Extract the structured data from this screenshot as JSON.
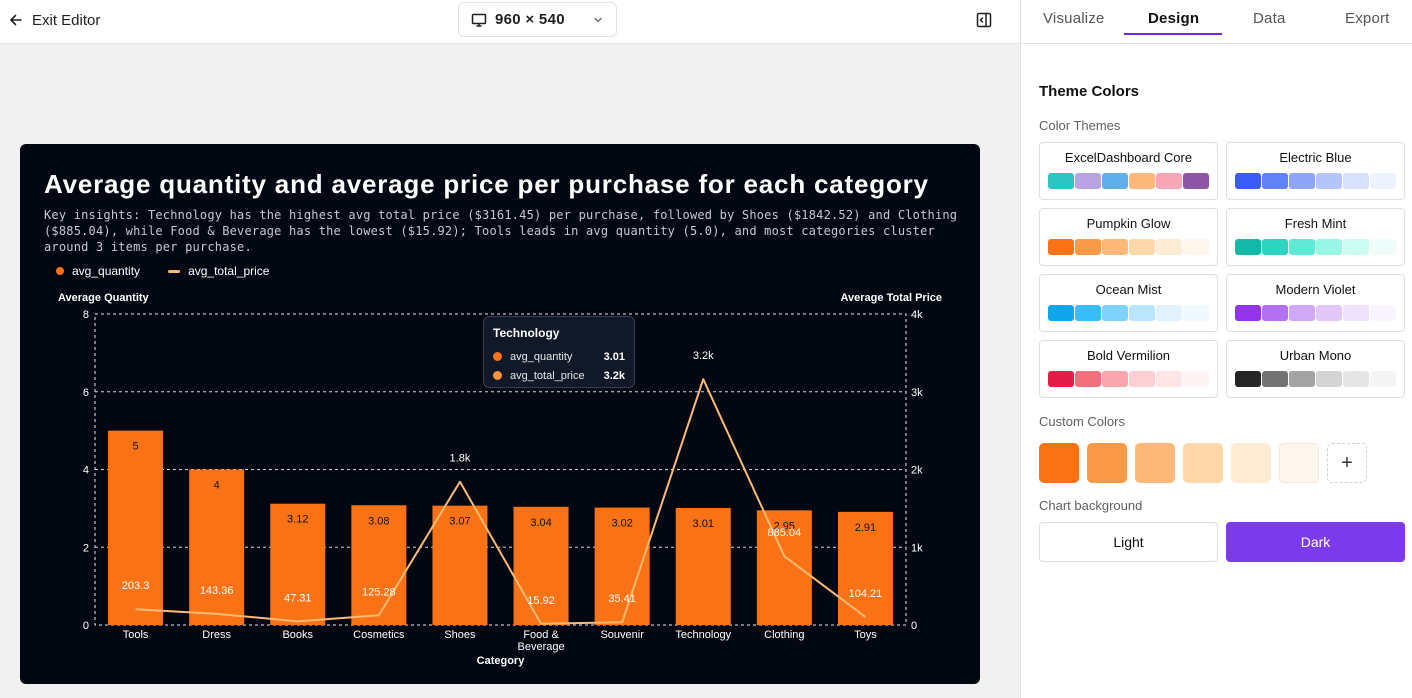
{
  "topbar": {
    "exit_label": "Exit Editor",
    "canvas_size": "960 × 540"
  },
  "tabs": [
    {
      "label": "Visualize",
      "active": false
    },
    {
      "label": "Design",
      "active": true
    },
    {
      "label": "Data",
      "active": false
    },
    {
      "label": "Export",
      "active": false
    }
  ],
  "design": {
    "section_title": "Theme Colors",
    "themes_label": "Color Themes",
    "themes": [
      {
        "name": "ExcelDashboard Core",
        "colors": [
          "#2ec4c4",
          "#b9a3e3",
          "#5fb0ea",
          "#fdb87a",
          "#f7a6b6",
          "#8e56a8"
        ]
      },
      {
        "name": "Electric Blue",
        "colors": [
          "#3b5cf6",
          "#6181f7",
          "#8ea5f9",
          "#b4c5fb",
          "#d7e1fd",
          "#eef2fe"
        ]
      },
      {
        "name": "Pumpkin Glow",
        "colors": [
          "#f97316",
          "#fb9a46",
          "#fdb87a",
          "#fed7aa",
          "#feebd4",
          "#fff7ed"
        ]
      },
      {
        "name": "Fresh Mint",
        "colors": [
          "#14b8a6",
          "#2dd4bf",
          "#5eead4",
          "#99f6e4",
          "#ccfbf1",
          "#effdfa"
        ]
      },
      {
        "name": "Ocean Mist",
        "colors": [
          "#0ea5e9",
          "#38bdf8",
          "#7dd3fc",
          "#bae6fd",
          "#dff2fe",
          "#f0f9ff"
        ]
      },
      {
        "name": "Modern Violet",
        "colors": [
          "#9333ea",
          "#b370f0",
          "#d0a9f6",
          "#e1c8f9",
          "#efe2fc",
          "#f9f4fe"
        ]
      },
      {
        "name": "Bold Vermilion",
        "colors": [
          "#e11d48",
          "#f4707f",
          "#f9a6ae",
          "#fccfd4",
          "#fde5e8",
          "#fff4f5"
        ]
      },
      {
        "name": "Urban Mono",
        "colors": [
          "#262626",
          "#737373",
          "#a3a3a3",
          "#d4d4d4",
          "#e5e5e5",
          "#f5f5f5"
        ]
      }
    ],
    "custom_label": "Custom Colors",
    "custom_colors": [
      "#f97316",
      "#fb9a46",
      "#fdb87a",
      "#fed7aa",
      "#feebd4",
      "#fff7ed"
    ],
    "add_label": "+",
    "background_label": "Chart background",
    "bg_light": "Light",
    "bg_dark": "Dark",
    "bg_selected": "Dark"
  },
  "chart": {
    "title": "Average quantity and average price per purchase for each category",
    "subtitle": "Key insights: Technology has the highest avg total price ($3161.45) per purchase, followed by Shoes ($1842.52) and Clothing ($885.04), while Food & Beverage has the lowest ($15.92); Tools leads in avg quantity (5.0), and most categories cluster around 3 items per purchase.",
    "legend": [
      {
        "name": "avg_quantity",
        "color": "#f97316",
        "shape": "dot"
      },
      {
        "name": "avg_total_price",
        "color": "#fdba74",
        "shape": "line"
      }
    ],
    "tooltip": {
      "title": "Technology",
      "rows": [
        {
          "label": "avg_quantity",
          "value": "3.01",
          "color": "#f97316"
        },
        {
          "label": "avg_total_price",
          "value": "3.2k",
          "color": "#fb923c"
        }
      ]
    }
  },
  "chart_data": {
    "type": "bar",
    "title": "Average quantity and average price per purchase for each category",
    "xlabel": "Category",
    "ylabel": "Average Quantity",
    "y2label": "Average Total Price",
    "categories": [
      "Tools",
      "Dress",
      "Books",
      "Cosmetics",
      "Shoes",
      "Food & Beverage",
      "Souvenir",
      "Technology",
      "Clothing",
      "Toys"
    ],
    "ylim": [
      0,
      8
    ],
    "y_ticks": [
      "0",
      "2",
      "4",
      "6",
      "8"
    ],
    "y2lim": [
      0,
      4000
    ],
    "y2_ticks": [
      "0",
      "1k",
      "2k",
      "3k",
      "4k"
    ],
    "grid": true,
    "legend_position": "top-left",
    "series": [
      {
        "name": "avg_quantity",
        "type": "bar",
        "axis": "left",
        "color": "#f97316",
        "values": [
          5.0,
          4.0,
          3.12,
          3.08,
          3.07,
          3.04,
          3.02,
          3.01,
          2.95,
          2.91
        ],
        "labels": [
          "5",
          "4",
          "3.12",
          "3.08",
          "3.07",
          "3.04",
          "3.02",
          "3.01",
          "2.95",
          "2.91"
        ]
      },
      {
        "name": "avg_total_price",
        "type": "line",
        "axis": "right",
        "color": "#fdba74",
        "values": [
          203.3,
          143.36,
          47.31,
          125.28,
          1842.52,
          15.92,
          35.41,
          3161.45,
          885.04,
          104.21
        ],
        "labels": [
          "203.3",
          "143.36",
          "47.31",
          "125.28",
          "1.8k",
          "15.92",
          "35.41",
          "3.2k",
          "885.04",
          "104.21"
        ]
      }
    ]
  }
}
